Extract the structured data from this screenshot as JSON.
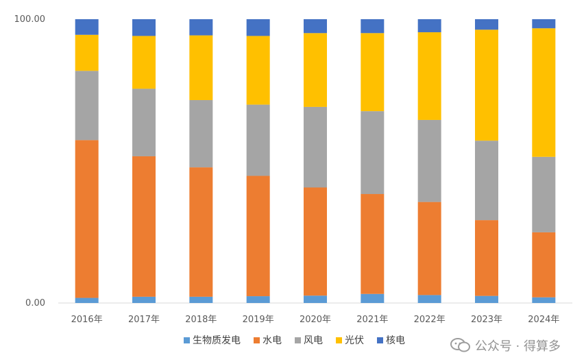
{
  "chart_data": {
    "type": "stacked_bar_100",
    "title": "",
    "xlabel": "",
    "ylabel": "",
    "ylim": [
      0,
      100
    ],
    "y_ticks": [
      "100.00",
      "0.00"
    ],
    "grid": false,
    "legend_position": "bottom",
    "categories": [
      "2016年",
      "2017年",
      "2018年",
      "2019年",
      "2020年",
      "2021年",
      "2022年",
      "2023年",
      "2024年"
    ],
    "series": [
      {
        "name": "生物质发电",
        "color": "#5B9BD5",
        "values": [
          1.8,
          2.2,
          2.2,
          2.4,
          2.6,
          3.2,
          2.8,
          2.5,
          2.0
        ]
      },
      {
        "name": "水电",
        "color": "#ED7D31",
        "values": [
          55.6,
          49.5,
          45.6,
          42.4,
          38.1,
          35.2,
          32.8,
          26.7,
          22.9
        ]
      },
      {
        "name": "风电",
        "color": "#A5A5A5",
        "values": [
          24.4,
          23.8,
          23.7,
          25.1,
          28.4,
          29.2,
          28.9,
          28.0,
          26.6
        ]
      },
      {
        "name": "光伏",
        "color": "#FFC000",
        "values": [
          12.7,
          18.6,
          22.8,
          24.2,
          26.0,
          27.5,
          30.9,
          39.1,
          45.3
        ]
      },
      {
        "name": "核电",
        "color": "#4472C4",
        "values": [
          5.5,
          5.9,
          5.7,
          5.9,
          4.9,
          4.9,
          4.6,
          3.7,
          3.2
        ]
      }
    ]
  },
  "watermark": {
    "text": "公众号 · 得算多",
    "icon": "wechat-icon"
  }
}
